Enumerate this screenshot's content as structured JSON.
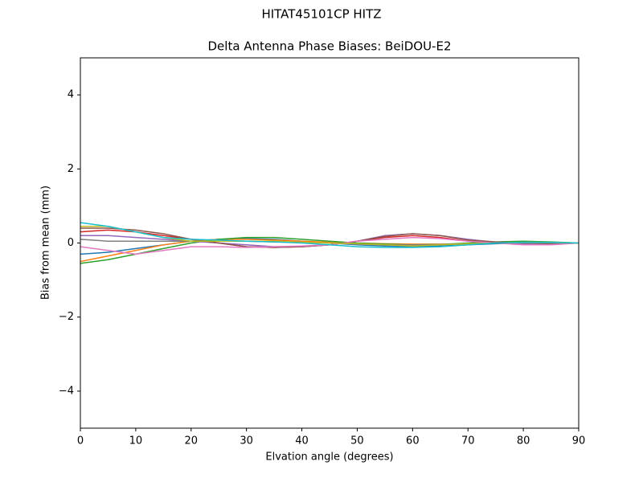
{
  "chart_data": {
    "type": "line",
    "suptitle": "HITAT45101CP    HITZ",
    "title": "Delta Antenna Phase Biases: BeiDOU-E2",
    "xlabel": "Elvation angle (degrees)",
    "ylabel": "Bias from mean (mm)",
    "x": [
      0,
      5,
      10,
      15,
      20,
      25,
      30,
      35,
      40,
      45,
      50,
      55,
      60,
      65,
      70,
      75,
      80,
      85,
      90
    ],
    "xlim": [
      0,
      90
    ],
    "xticks": [
      0,
      10,
      20,
      30,
      40,
      50,
      60,
      70,
      80,
      90
    ],
    "ylim": [
      -5,
      5
    ],
    "yticks": [
      {
        "value": -4,
        "label": "−4"
      },
      {
        "value": -2,
        "label": "−2"
      },
      0,
      2,
      4
    ],
    "series": [
      {
        "color": "#1f77b4",
        "values": [
          -0.3,
          -0.25,
          -0.15,
          -0.05,
          0.05,
          0.1,
          0.12,
          0.1,
          0.05,
          0,
          -0.05,
          -0.08,
          -0.1,
          -0.08,
          -0.05,
          -0.02,
          0,
          0,
          0
        ]
      },
      {
        "color": "#ff7f0e",
        "values": [
          -0.5,
          -0.35,
          -0.2,
          -0.05,
          0.05,
          0.1,
          0.1,
          0.08,
          0.05,
          0.02,
          0,
          -0.02,
          -0.03,
          -0.03,
          -0.02,
          0,
          0.01,
          0.01,
          0
        ]
      },
      {
        "color": "#2ca02c",
        "values": [
          -0.55,
          -0.45,
          -0.3,
          -0.15,
          0,
          0.1,
          0.15,
          0.15,
          0.1,
          0.05,
          0,
          -0.03,
          -0.05,
          -0.04,
          0,
          0.03,
          0.05,
          0.03,
          0
        ]
      },
      {
        "color": "#d62728",
        "values": [
          0.3,
          0.35,
          0.3,
          0.2,
          0.1,
          0,
          -0.1,
          -0.12,
          -0.1,
          -0.05,
          0.05,
          0.15,
          0.2,
          0.15,
          0.05,
          0,
          0,
          0,
          0
        ]
      },
      {
        "color": "#9467bd",
        "values": [
          0.2,
          0.2,
          0.15,
          0.1,
          0.05,
          0,
          -0.05,
          -0.1,
          -0.1,
          -0.05,
          0.05,
          0.2,
          0.25,
          0.2,
          0.1,
          0.02,
          -0.02,
          -0.02,
          0
        ]
      },
      {
        "color": "#8c564b",
        "values": [
          0.4,
          0.4,
          0.35,
          0.25,
          0.1,
          0,
          -0.1,
          -0.12,
          -0.1,
          -0.05,
          0.05,
          0.18,
          0.25,
          0.2,
          0.08,
          0.03,
          0,
          -0.02,
          0
        ]
      },
      {
        "color": "#e377c2",
        "values": [
          -0.1,
          -0.2,
          -0.3,
          -0.2,
          -0.1,
          -0.1,
          -0.12,
          -0.1,
          -0.08,
          -0.05,
          0.05,
          0.1,
          0.15,
          0.12,
          0.05,
          0,
          -0.05,
          -0.05,
          0
        ]
      },
      {
        "color": "#7f7f7f",
        "values": [
          0.1,
          0.05,
          0.05,
          0.05,
          0.05,
          0.05,
          0.05,
          0.03,
          0.02,
          0,
          -0.03,
          -0.05,
          -0.05,
          -0.04,
          -0.02,
          0,
          0,
          0,
          0
        ]
      },
      {
        "color": "#bcbd22",
        "values": [
          0.45,
          0.45,
          0.3,
          0.15,
          0.05,
          0.05,
          0.05,
          0.05,
          0.02,
          0,
          -0.02,
          -0.05,
          -0.08,
          -0.05,
          -0.02,
          0,
          0.02,
          0.02,
          0
        ]
      },
      {
        "color": "#17becf",
        "values": [
          0.55,
          0.45,
          0.3,
          0.15,
          0.1,
          0.08,
          0.05,
          0.03,
          0,
          -0.05,
          -0.1,
          -0.12,
          -0.12,
          -0.1,
          -0.05,
          0,
          0.02,
          0.02,
          0
        ]
      }
    ]
  }
}
